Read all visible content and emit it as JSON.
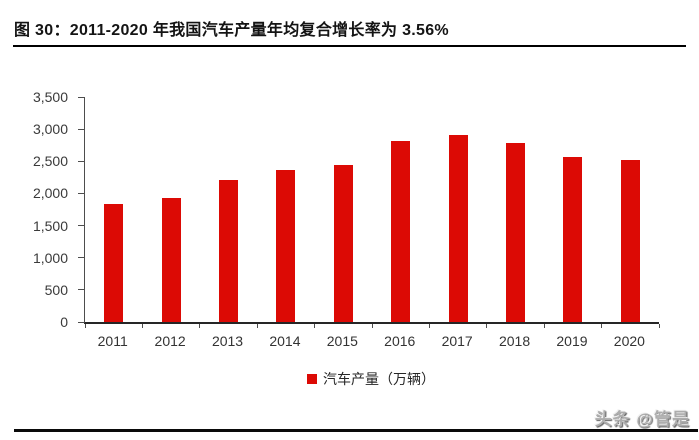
{
  "header": {
    "title": "图  30：2011-2020 年我国汽车产量年均复合增长率为 3.56%"
  },
  "watermark": {
    "text": "头条 @管是"
  },
  "chart_data": {
    "type": "bar",
    "title": "图 30：2011-2020 年我国汽车产量年均复合增长率为 3.56%",
    "categories": [
      "2011",
      "2012",
      "2013",
      "2014",
      "2015",
      "2016",
      "2017",
      "2018",
      "2019",
      "2020"
    ],
    "values": [
      1842,
      1927,
      2212,
      2372,
      2450,
      2812,
      2902,
      2781,
      2572,
      2523
    ],
    "series_name": "汽车产量（万辆）",
    "xlabel": "",
    "ylabel": "",
    "ylim": [
      0,
      3500
    ],
    "yticks": [
      0,
      500,
      1000,
      1500,
      2000,
      2500,
      3000,
      3500
    ],
    "ytick_labels": [
      "0",
      "500",
      "1,000",
      "1,500",
      "2,000",
      "2,500",
      "3,000",
      "3,500"
    ],
    "legend": {
      "label": "汽车产量（万辆）",
      "position": "bottom"
    },
    "bar_color": "#dc0a05",
    "axis_color": "#4d4d4d",
    "grid": false
  }
}
